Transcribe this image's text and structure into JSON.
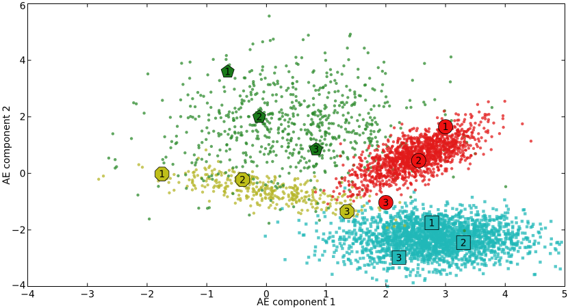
{
  "chart_data": {
    "type": "scatter",
    "title": "",
    "xlabel": "AE component 1",
    "ylabel": "AE component 2",
    "xlim": [
      -4,
      5
    ],
    "ylim": [
      -4,
      6
    ],
    "x_ticks": [
      -4,
      -3,
      -2,
      -1,
      0,
      1,
      2,
      3,
      4,
      5
    ],
    "y_ticks": [
      -4,
      -2,
      0,
      2,
      4,
      6
    ],
    "x_tick_labels": [
      "−4",
      "−3",
      "−2",
      "−1",
      "0",
      "1",
      "2",
      "3",
      "4",
      "5"
    ],
    "y_tick_labels": [
      "−4",
      "−2",
      "0",
      "2",
      "4",
      "6"
    ],
    "grid": false,
    "legend": "none",
    "clusters": [
      {
        "color": "#2e8b2e",
        "marker": "circle",
        "center": [
          0.5,
          1.6
        ],
        "spread": [
          1.1,
          1.2
        ],
        "approx_count": 700
      },
      {
        "color": "#b5b52a",
        "marker": "circle",
        "center": [
          0.0,
          -0.6
        ],
        "spread": [
          0.9,
          0.45
        ],
        "approx_count": 350
      },
      {
        "color": "#e11b1b",
        "marker": "circle",
        "center": [
          2.5,
          0.6
        ],
        "spread": [
          0.5,
          0.55
        ],
        "approx_count": 1400
      },
      {
        "color": "#22b8b8",
        "marker": "square",
        "center": [
          2.8,
          -2.3
        ],
        "spread": [
          0.75,
          0.5
        ],
        "approx_count": 2200
      }
    ],
    "labeled_points": [
      {
        "shape": "pentagon",
        "color": "#1a7a1a",
        "label": "1",
        "x": -0.65,
        "y": 3.6
      },
      {
        "shape": "pentagon",
        "color": "#1a7a1a",
        "label": "2",
        "x": -0.12,
        "y": 2.0
      },
      {
        "shape": "pentagon",
        "color": "#1a7a1a",
        "label": "3",
        "x": 0.83,
        "y": 0.85
      },
      {
        "shape": "octagon",
        "color": "#bfbf1a",
        "label": "1",
        "x": -1.75,
        "y": -0.02
      },
      {
        "shape": "octagon",
        "color": "#bfbf1a",
        "label": "2",
        "x": -0.4,
        "y": -0.22
      },
      {
        "shape": "octagon",
        "color": "#bfbf1a",
        "label": "3",
        "x": 1.35,
        "y": -1.35
      },
      {
        "shape": "circle",
        "color": "#ee1111",
        "label": "1",
        "x": 3.0,
        "y": 1.65
      },
      {
        "shape": "circle",
        "color": "#ee1111",
        "label": "2",
        "x": 2.55,
        "y": 0.45
      },
      {
        "shape": "circle",
        "color": "#ee1111",
        "label": "3",
        "x": 2.0,
        "y": -1.03
      },
      {
        "shape": "square",
        "color": "#22b8b8",
        "label": "1",
        "x": 2.77,
        "y": -1.75
      },
      {
        "shape": "square",
        "color": "#22b8b8",
        "label": "2",
        "x": 3.3,
        "y": -2.45
      },
      {
        "shape": "square",
        "color": "#22b8b8",
        "label": "3",
        "x": 2.22,
        "y": -2.98
      }
    ]
  }
}
